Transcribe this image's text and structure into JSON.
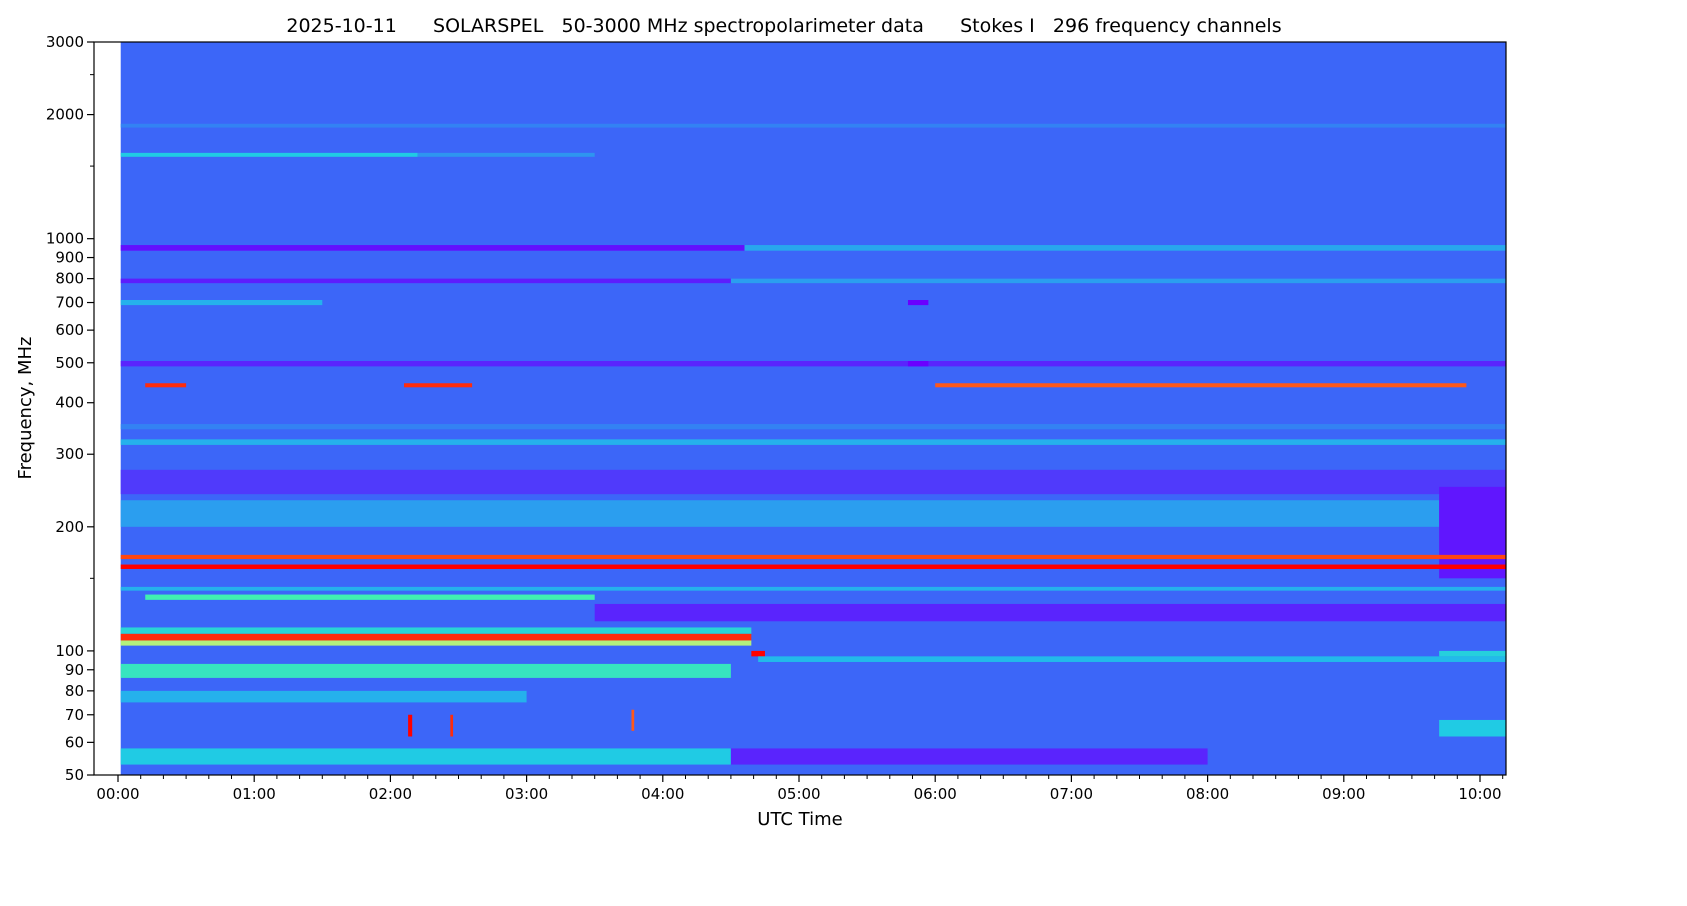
{
  "chart_data": {
    "type": "heatmap",
    "title": "2025-10-11      SOLARSPEL   50-3000 MHz spectropolarimeter data      Stokes I   296 frequency channels",
    "xlabel": "UTC Time",
    "ylabel": "Frequency, MHz",
    "xlim_hours": [
      0,
      10.19
    ],
    "ylim": [
      50,
      3000
    ],
    "yscale": "log",
    "x_ticks": [
      {
        "value": 0,
        "label": "00:00"
      },
      {
        "value": 1,
        "label": "01:00"
      },
      {
        "value": 2,
        "label": "02:00"
      },
      {
        "value": 3,
        "label": "03:00"
      },
      {
        "value": 4,
        "label": "04:00"
      },
      {
        "value": 5,
        "label": "05:00"
      },
      {
        "value": 6,
        "label": "06:00"
      },
      {
        "value": 7,
        "label": "07:00"
      },
      {
        "value": 8,
        "label": "08:00"
      },
      {
        "value": 9,
        "label": "09:00"
      },
      {
        "value": 10,
        "label": "10:00"
      }
    ],
    "y_ticks": [
      {
        "value": 50,
        "label": "50"
      },
      {
        "value": 60,
        "label": "60"
      },
      {
        "value": 70,
        "label": "70"
      },
      {
        "value": 80,
        "label": "80"
      },
      {
        "value": 90,
        "label": "90"
      },
      {
        "value": 100,
        "label": "100"
      },
      {
        "value": 200,
        "label": "200"
      },
      {
        "value": 300,
        "label": "300"
      },
      {
        "value": 400,
        "label": "400"
      },
      {
        "value": 500,
        "label": "500"
      },
      {
        "value": 600,
        "label": "600"
      },
      {
        "value": 700,
        "label": "700"
      },
      {
        "value": 800,
        "label": "800"
      },
      {
        "value": 900,
        "label": "900"
      },
      {
        "value": 1000,
        "label": "1000"
      },
      {
        "value": 2000,
        "label": "2000"
      },
      {
        "value": 3000,
        "label": "3000"
      }
    ],
    "y_minor_ticks": [
      150,
      1500,
      2500
    ],
    "data_start_hour": 0.02,
    "bands": [
      {
        "f": [
          50,
          3000
        ],
        "t": [
          0.02,
          10.19
        ],
        "level": 0.14
      },
      {
        "f": [
          1860,
          1900
        ],
        "t": [
          0.02,
          10.19
        ],
        "level": 0.2
      },
      {
        "f": [
          1580,
          1615
        ],
        "t": [
          0.02,
          2.2
        ],
        "level": 0.36
      },
      {
        "f": [
          1580,
          1615
        ],
        "t": [
          2.2,
          3.5
        ],
        "level": 0.24
      },
      {
        "f": [
          935,
          965
        ],
        "t": [
          0.02,
          4.6
        ],
        "level": 0.02
      },
      {
        "f": [
          935,
          965
        ],
        "t": [
          4.6,
          10.19
        ],
        "level": 0.28
      },
      {
        "f": [
          780,
          800
        ],
        "t": [
          0.02,
          4.5
        ],
        "level": 0.04
      },
      {
        "f": [
          780,
          800
        ],
        "t": [
          4.5,
          10.19
        ],
        "level": 0.26
      },
      {
        "f": [
          690,
          710
        ],
        "t": [
          0.02,
          1.5
        ],
        "level": 0.3
      },
      {
        "f": [
          690,
          710
        ],
        "t": [
          5.8,
          5.95
        ],
        "level": 0.0
      },
      {
        "f": [
          490,
          505
        ],
        "t": [
          0.02,
          10.19
        ],
        "level": 0.05
      },
      {
        "f": [
          490,
          505
        ],
        "t": [
          5.8,
          5.95
        ],
        "level": 0.0
      },
      {
        "f": [
          436,
          446
        ],
        "t": [
          0.2,
          0.5
        ],
        "level": 0.95
      },
      {
        "f": [
          436,
          446
        ],
        "t": [
          2.1,
          2.6
        ],
        "level": 0.95
      },
      {
        "f": [
          436,
          446
        ],
        "t": [
          6.0,
          9.9
        ],
        "level": 0.9
      },
      {
        "f": [
          345,
          355
        ],
        "t": [
          0.02,
          10.19
        ],
        "level": 0.2
      },
      {
        "f": [
          316,
          326
        ],
        "t": [
          0.02,
          10.19
        ],
        "level": 0.3
      },
      {
        "f": [
          240,
          275
        ],
        "t": [
          0.02,
          10.19
        ],
        "level": 0.08
      },
      {
        "f": [
          200,
          232
        ],
        "t": [
          0.02,
          9.7
        ],
        "level": 0.26
      },
      {
        "f": [
          150,
          250
        ],
        "t": [
          9.7,
          10.19
        ],
        "level": 0.03
      },
      {
        "f": [
          167,
          171
        ],
        "t": [
          0.02,
          10.19
        ],
        "level": 0.92
      },
      {
        "f": [
          158,
          162
        ],
        "t": [
          0.02,
          10.19
        ],
        "level": 1.0
      },
      {
        "f": [
          140,
          143
        ],
        "t": [
          0.02,
          10.19
        ],
        "level": 0.3
      },
      {
        "f": [
          133,
          137
        ],
        "t": [
          0.2,
          3.5
        ],
        "level": 0.5
      },
      {
        "f": [
          118,
          130
        ],
        "t": [
          3.5,
          10.19
        ],
        "level": 0.05
      },
      {
        "f": [
          110,
          114
        ],
        "t": [
          0.02,
          4.65
        ],
        "level": 0.4
      },
      {
        "f": [
          106,
          110
        ],
        "t": [
          0.02,
          4.65
        ],
        "level": 0.95
      },
      {
        "f": [
          103,
          106
        ],
        "t": [
          0.02,
          4.65
        ],
        "level": 0.62
      },
      {
        "f": [
          97,
          100
        ],
        "t": [
          4.65,
          4.75
        ],
        "level": 1.0
      },
      {
        "f": [
          94,
          97
        ],
        "t": [
          4.7,
          10.19
        ],
        "level": 0.32
      },
      {
        "f": [
          97,
          100
        ],
        "t": [
          9.7,
          10.19
        ],
        "level": 0.38
      },
      {
        "f": [
          86,
          93
        ],
        "t": [
          0.02,
          4.5
        ],
        "level": 0.46
      },
      {
        "f": [
          75,
          80
        ],
        "t": [
          0.02,
          3.0
        ],
        "level": 0.3
      },
      {
        "f": [
          53,
          58
        ],
        "t": [
          0.02,
          4.5
        ],
        "level": 0.36
      },
      {
        "f": [
          53,
          58
        ],
        "t": [
          4.5,
          8.0
        ],
        "level": 0.05
      },
      {
        "f": [
          62,
          68
        ],
        "t": [
          9.7,
          10.19
        ],
        "level": 0.36
      },
      {
        "f": [
          62,
          70
        ],
        "t": [
          2.13,
          2.16
        ],
        "level": 1.0
      },
      {
        "f": [
          62,
          70
        ],
        "t": [
          2.44,
          2.46
        ],
        "level": 0.95
      },
      {
        "f": [
          64,
          72
        ],
        "t": [
          3.77,
          3.79
        ],
        "level": 0.9
      }
    ],
    "colormap": "rainbow"
  }
}
